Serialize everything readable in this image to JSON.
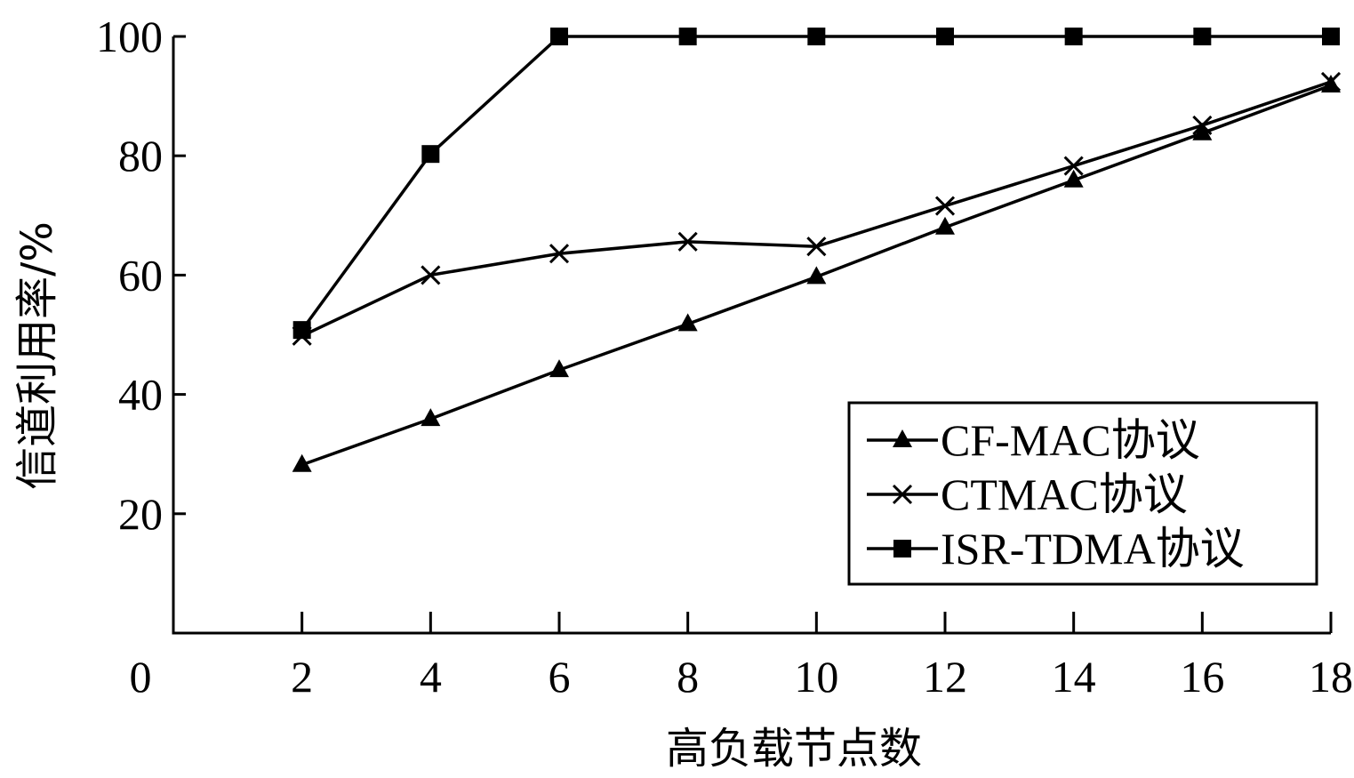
{
  "chart_data": {
    "type": "line",
    "title": "",
    "xlabel": "高负载节点数",
    "ylabel": "信道利用率/%",
    "x": [
      2,
      4,
      6,
      8,
      10,
      12,
      14,
      16,
      18
    ],
    "xlim": [
      0,
      18
    ],
    "ylim": [
      0,
      100
    ],
    "x_ticks": [
      0,
      2,
      4,
      6,
      8,
      10,
      12,
      14,
      16,
      18
    ],
    "y_ticks": [
      20,
      40,
      60,
      80,
      100
    ],
    "grid": false,
    "legend_position": "lower-right",
    "series": [
      {
        "name": "CF-MAC协议",
        "marker": "triangle",
        "values": [
          28.2,
          35.9,
          44.1,
          51.8,
          59.7,
          68.0,
          75.9,
          83.8,
          91.8
        ]
      },
      {
        "name": "CTMAC协议",
        "marker": "x",
        "values": [
          49.8,
          60.0,
          63.6,
          65.6,
          64.8,
          71.6,
          78.3,
          85.1,
          92.4
        ]
      },
      {
        "name": "ISR-TDMA协议",
        "marker": "square",
        "values": [
          50.8,
          80.3,
          100,
          100,
          100,
          100,
          100,
          100,
          100
        ]
      }
    ],
    "colors": {
      "line": "#000000",
      "background": "#ffffff"
    }
  }
}
